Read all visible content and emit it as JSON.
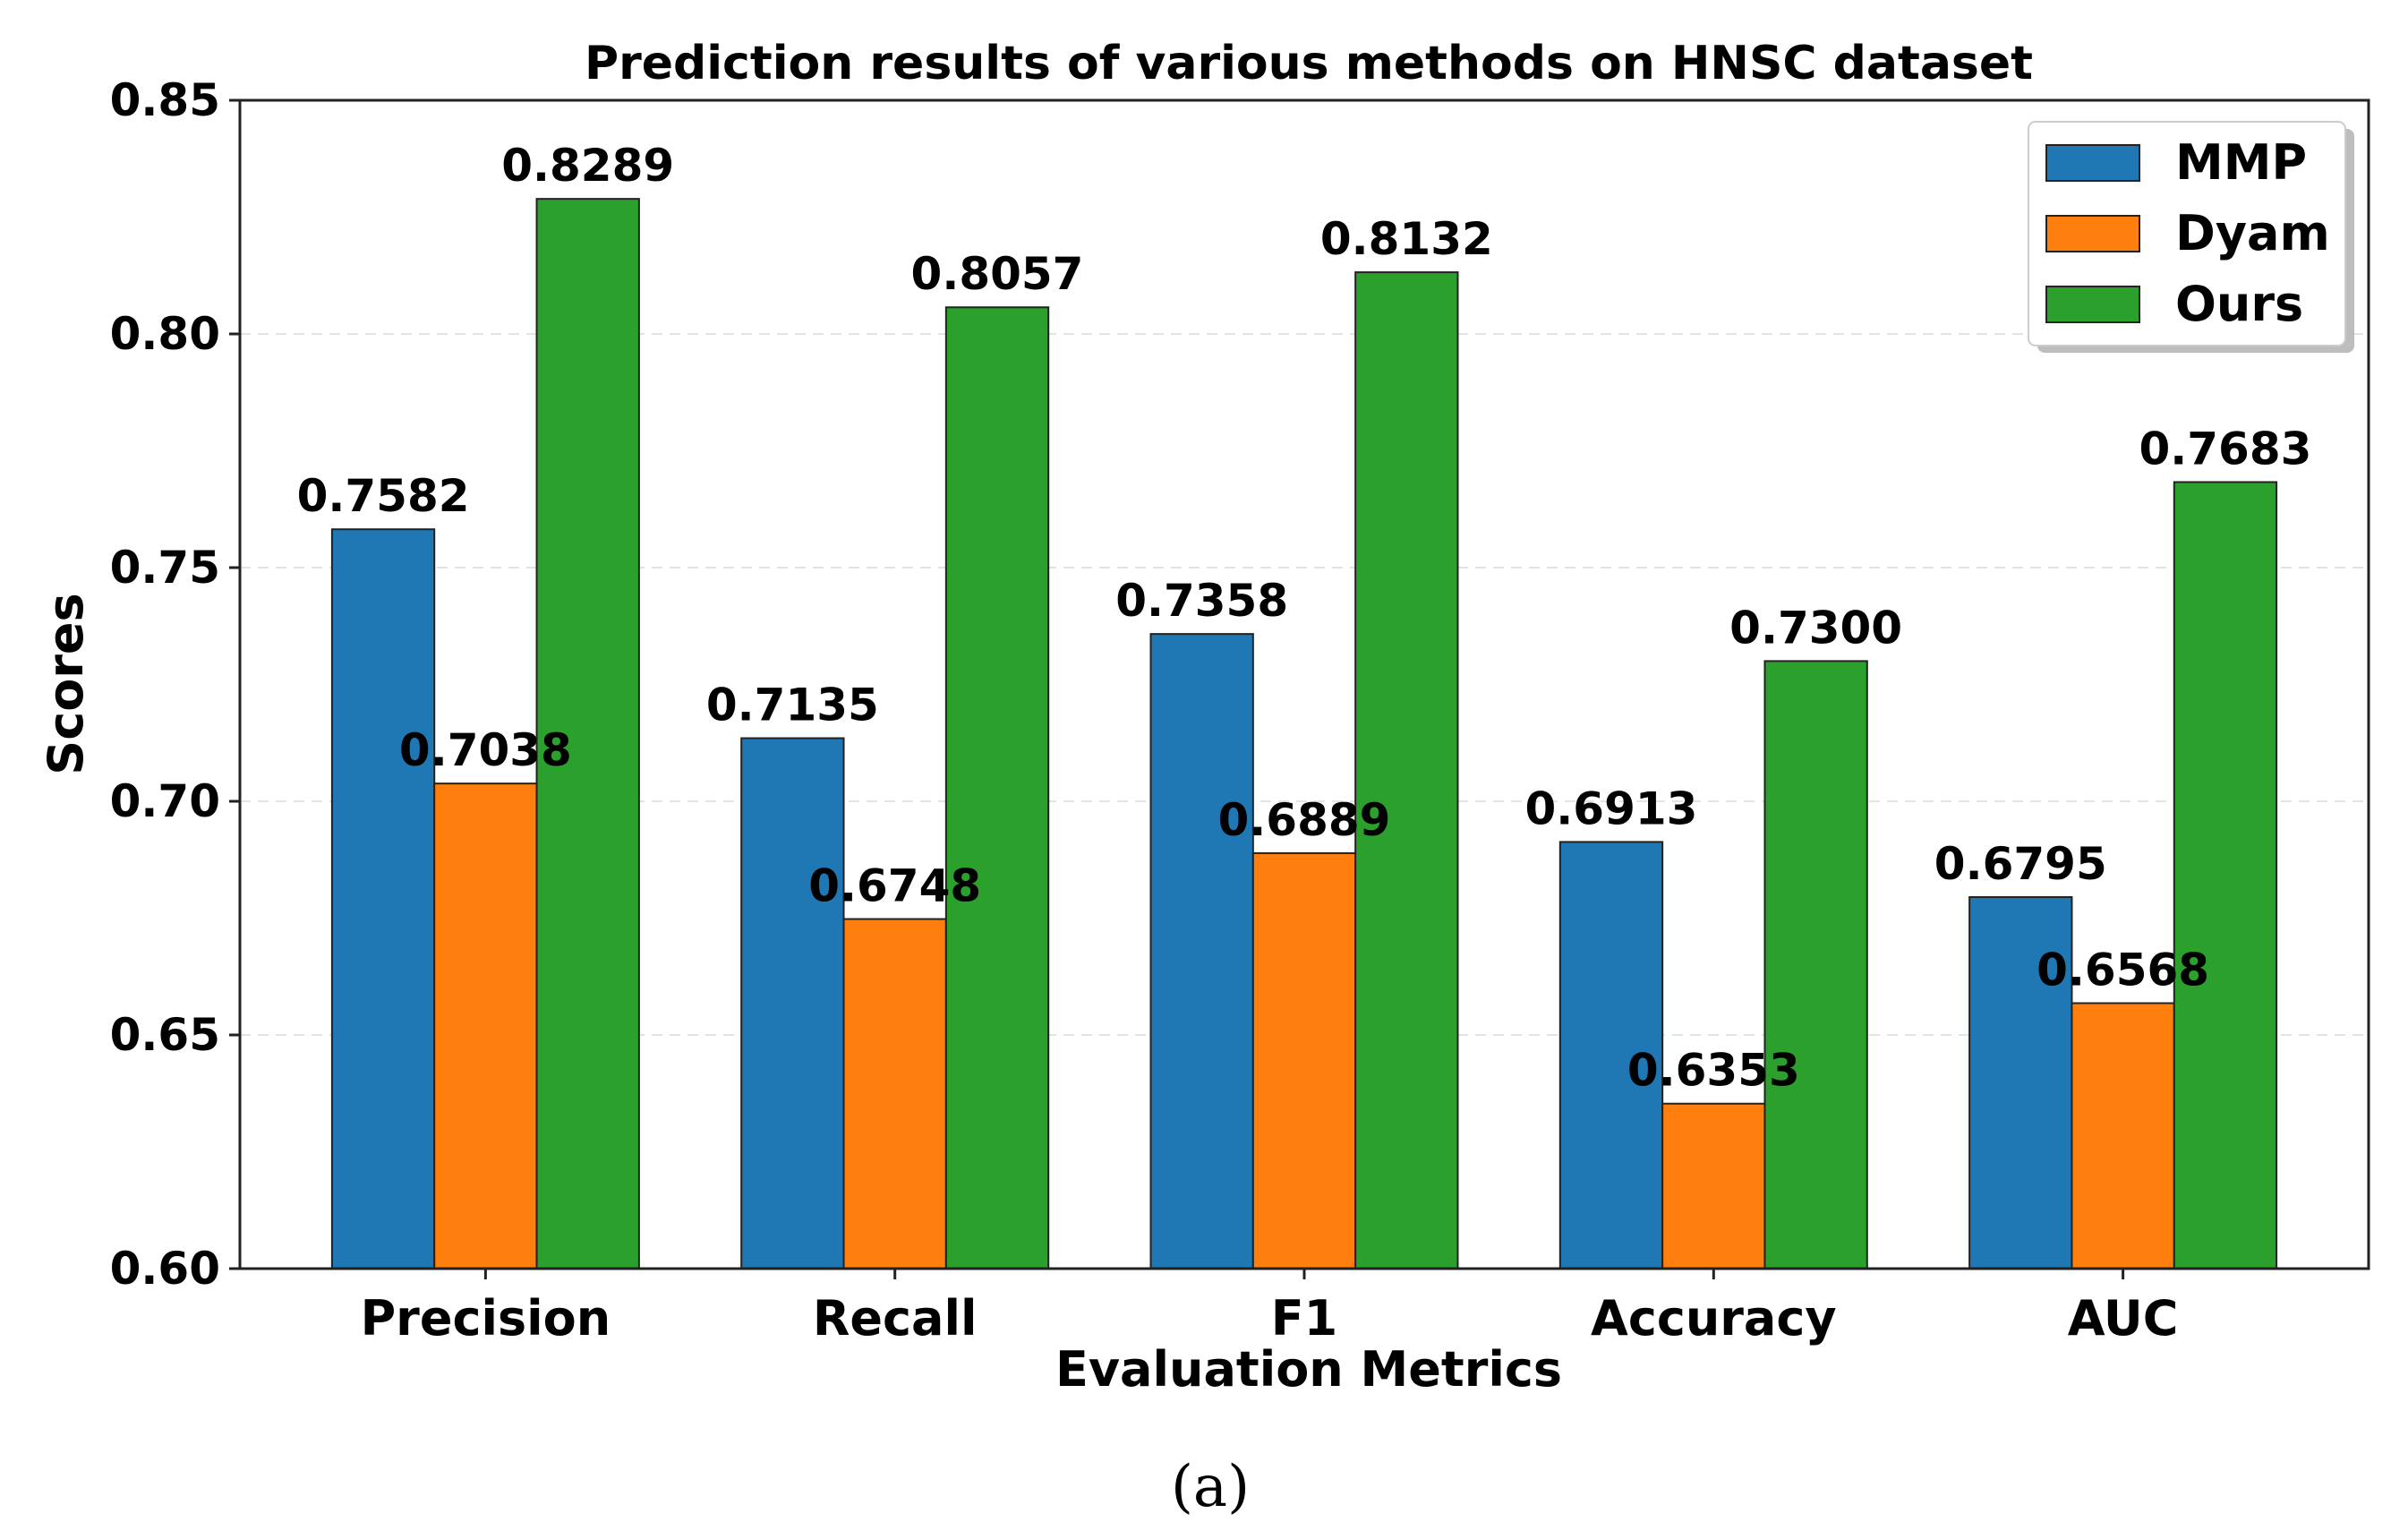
{
  "chart_data": {
    "type": "bar",
    "title": "Prediction results of various methods on HNSC dataset",
    "xlabel": "Evaluation Metrics",
    "ylabel": "Scores",
    "ylim": [
      0.6,
      0.85
    ],
    "yticks": [
      0.6,
      0.65,
      0.7,
      0.75,
      0.8,
      0.85
    ],
    "ytick_labels": [
      "0.60",
      "0.65",
      "0.70",
      "0.75",
      "0.80",
      "0.85"
    ],
    "categories": [
      "Precision",
      "Recall",
      "F1",
      "Accuracy",
      "AUC"
    ],
    "series": [
      {
        "name": "MMP",
        "color": "#1f77b4",
        "values": [
          0.7582,
          0.7135,
          0.7358,
          0.6913,
          0.6795
        ],
        "labels": [
          "0.7582",
          "0.7135",
          "0.7358",
          "0.6913",
          "0.6795"
        ]
      },
      {
        "name": "Dyam",
        "color": "#ff7f0e",
        "values": [
          0.7038,
          0.6748,
          0.6889,
          0.6353,
          0.6568
        ],
        "labels": [
          "0.7038",
          "0.6748",
          "0.6889",
          "0.6353",
          "0.6568"
        ]
      },
      {
        "name": "Ours",
        "color": "#2ca02c",
        "values": [
          0.8289,
          0.8057,
          0.8132,
          0.73,
          0.7683
        ],
        "labels": [
          "0.8289",
          "0.8057",
          "0.8132",
          "0.7300",
          "0.7683"
        ]
      }
    ],
    "grid": "horizontal dashed",
    "legend_position": "top-right"
  },
  "caption": "(a)"
}
